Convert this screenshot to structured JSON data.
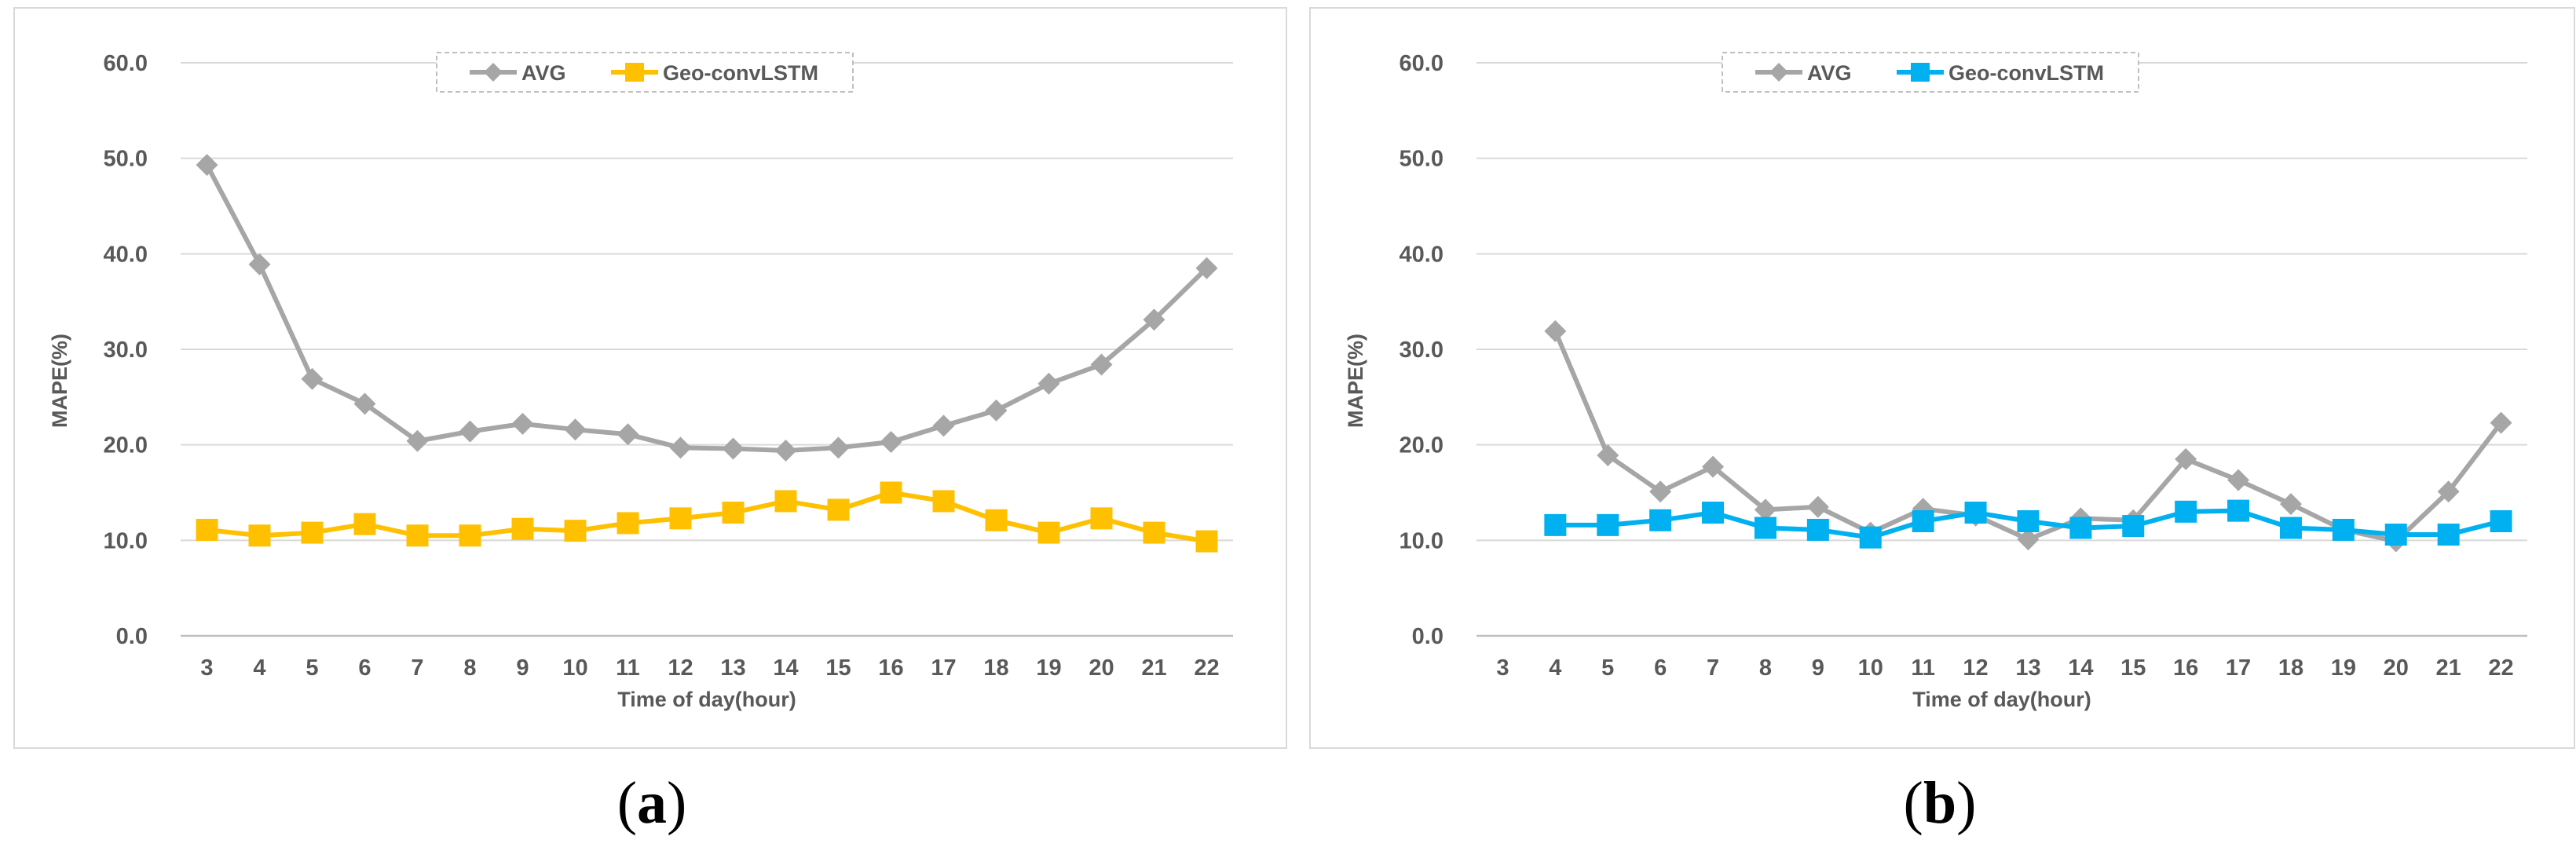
{
  "chart_data": [
    {
      "type": "line",
      "caption": "a",
      "xlabel": "Time of day(hour)",
      "ylabel": "MAPE(%)",
      "ylim": [
        0,
        60
      ],
      "y_ticks": [
        "0.0",
        "10.0",
        "20.0",
        "30.0",
        "40.0",
        "50.0",
        "60.0"
      ],
      "categories": [
        "3",
        "4",
        "5",
        "6",
        "7",
        "8",
        "9",
        "10",
        "11",
        "12",
        "13",
        "14",
        "15",
        "16",
        "17",
        "18",
        "19",
        "20",
        "21",
        "22"
      ],
      "grid": true,
      "legend_position": "top-center",
      "series": [
        {
          "name": "AVG",
          "color": "#a6a6a6",
          "marker": "diamond",
          "values": [
            49.3,
            38.9,
            26.9,
            24.3,
            20.4,
            21.4,
            22.2,
            21.6,
            21.1,
            19.7,
            19.6,
            19.4,
            19.7,
            20.3,
            22.0,
            23.6,
            26.4,
            28.4,
            33.1,
            38.5
          ]
        },
        {
          "name": "Geo-convLSTM",
          "color": "#ffc000",
          "marker": "square",
          "values": [
            11.1,
            10.5,
            10.8,
            11.7,
            10.5,
            10.5,
            11.2,
            11.0,
            11.8,
            12.3,
            12.9,
            14.1,
            13.2,
            15.0,
            14.1,
            12.1,
            10.8,
            12.3,
            10.8,
            9.9
          ]
        }
      ]
    },
    {
      "type": "line",
      "caption": "b",
      "xlabel": "Time of day(hour)",
      "ylabel": "MAPE(%)",
      "ylim": [
        0,
        60
      ],
      "y_ticks": [
        "0.0",
        "10.0",
        "20.0",
        "30.0",
        "40.0",
        "50.0",
        "60.0"
      ],
      "categories": [
        "3",
        "4",
        "5",
        "6",
        "7",
        "8",
        "9",
        "10",
        "11",
        "12",
        "13",
        "14",
        "15",
        "16",
        "17",
        "18",
        "19",
        "20",
        "21",
        "22"
      ],
      "grid": true,
      "legend_position": "top-center",
      "series": [
        {
          "name": "AVG",
          "color": "#a6a6a6",
          "marker": "diamond",
          "values": [
            null,
            31.9,
            18.9,
            15.1,
            17.7,
            13.2,
            13.5,
            10.8,
            13.3,
            12.6,
            10.1,
            12.3,
            12.1,
            18.5,
            16.3,
            13.8,
            11.1,
            9.9,
            15.1,
            22.3
          ]
        },
        {
          "name": "Geo-convLSTM",
          "color": "#00b0f0",
          "marker": "square",
          "values": [
            null,
            11.6,
            11.6,
            12.1,
            12.9,
            11.3,
            11.1,
            10.3,
            12.0,
            12.9,
            12.0,
            11.3,
            11.5,
            13.0,
            13.1,
            11.3,
            11.1,
            10.6,
            10.6,
            12.0
          ]
        }
      ]
    }
  ]
}
